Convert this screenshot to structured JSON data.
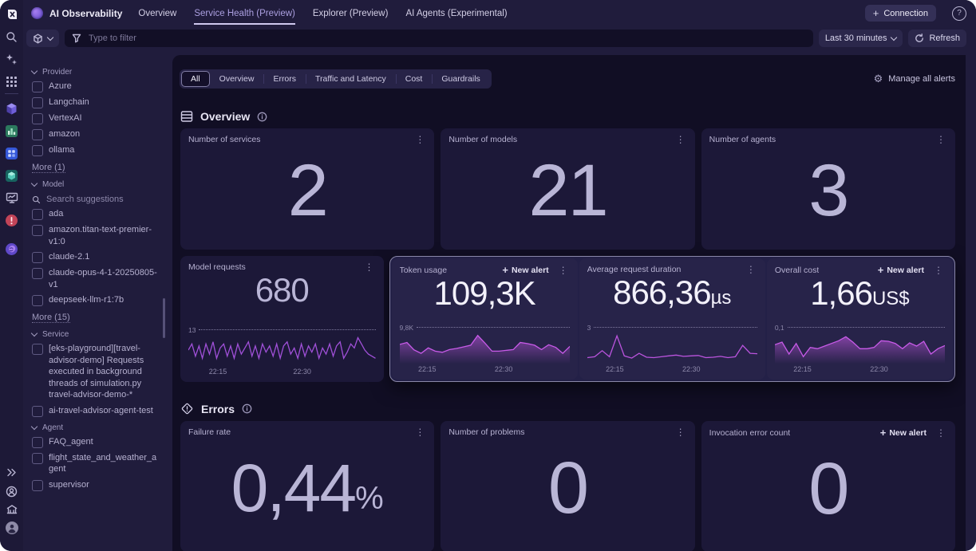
{
  "app": {
    "product": "AI Observability",
    "nav_tabs": [
      {
        "label": "Overview",
        "active": false
      },
      {
        "label": "Service Health (Preview)",
        "active": true
      },
      {
        "label": "Explorer (Preview)",
        "active": false
      },
      {
        "label": "AI Agents (Experimental)",
        "active": false
      }
    ],
    "connection_label": "Connection"
  },
  "filter_bar": {
    "placeholder": "Type to filter",
    "time_range": "Last 30 minutes",
    "refresh_label": "Refresh"
  },
  "sidebar": {
    "sections": [
      {
        "label": "Provider",
        "items": [
          "Azure",
          "Langchain",
          "VertexAI",
          "amazon",
          "ollama"
        ],
        "more": "More (1)"
      },
      {
        "label": "Model",
        "search_placeholder": "Search suggestions",
        "items": [
          "ada",
          "amazon.titan-text-premier-v1:0",
          "claude-2.1",
          "claude-opus-4-1-20250805-v1",
          "deepseek-llm-r1:7b"
        ],
        "more": "More (15)"
      },
      {
        "label": "Service",
        "items": [
          "[eks-playground][travel-advisor-demo] Requests executed in background threads of simulation.py travel-advisor-demo-*",
          "ai-travel-advisor-agent-test"
        ]
      },
      {
        "label": "Agent",
        "items": [
          "FAQ_agent",
          "flight_state_and_weather_agent",
          "supervisor"
        ]
      }
    ]
  },
  "toolbar": {
    "tabs": [
      "All",
      "Overview",
      "Errors",
      "Traffic and Latency",
      "Cost",
      "Guardrails"
    ],
    "active_tab": "All",
    "manage_alerts_label": "Manage all alerts"
  },
  "overview_section": {
    "title": "Overview",
    "count_cards": [
      {
        "title": "Number of services",
        "value": "2"
      },
      {
        "title": "Number of models",
        "value": "21"
      },
      {
        "title": "Number of agents",
        "value": "3"
      }
    ],
    "metric_cards": [
      {
        "title": "Model requests",
        "value": "680",
        "unit": ""
      },
      {
        "title": "Token usage",
        "value": "109,3K",
        "unit": ""
      },
      {
        "title": "Average request duration",
        "value": "866,36",
        "unit": "µs"
      },
      {
        "title": "Overall cost",
        "value": "1,66",
        "unit": "US$"
      }
    ],
    "new_alert_label": "New alert"
  },
  "errors_section": {
    "title": "Errors",
    "cards": [
      {
        "title": "Failure rate",
        "value": "0,44",
        "unit": "%"
      },
      {
        "title": "Number of problems",
        "value": "0",
        "unit": ""
      },
      {
        "title": "Invocation error count",
        "value": "0",
        "unit": ""
      }
    ],
    "new_alert_label": "New alert"
  },
  "colors": {
    "accent": "#ab9fe0",
    "spark_magenta": "#c85ae8",
    "spark_purple": "#a050d8",
    "card_bg": "#1c1838",
    "highlight_border": "#8a87a8"
  },
  "chart_data": [
    {
      "type": "line",
      "title": "Model requests",
      "legend": "none",
      "grid": "off",
      "threshold_label": "13",
      "x_ticks": [
        "22:15",
        "22:30"
      ],
      "ymax": 13.6,
      "color": "#a050d8",
      "area": false,
      "values": [
        7,
        10,
        4,
        9,
        3,
        10,
        5,
        11,
        3,
        8,
        10,
        4,
        9,
        3,
        10,
        5,
        8,
        11,
        4,
        9,
        3,
        10,
        6,
        9,
        4,
        10,
        3,
        9,
        11,
        5,
        8,
        3,
        10,
        4,
        9,
        6,
        10,
        3,
        8,
        5,
        10,
        4,
        9,
        11,
        3,
        6,
        10,
        8,
        13,
        10,
        7,
        5,
        4,
        3
      ]
    },
    {
      "type": "line",
      "title": "Token usage",
      "legend": "none",
      "grid": "off",
      "threshold_label": "9,8K",
      "x_ticks": [
        "22:15",
        "22:30"
      ],
      "ymax": 10.3,
      "color": "#c85ae8",
      "area": true,
      "values": [
        6.5,
        7.2,
        4.5,
        3.2,
        5.2,
        4.0,
        3.6,
        4.6,
        5.0,
        5.6,
        6.2,
        9.8,
        7.0,
        4.0,
        4.0,
        4.3,
        4.6,
        7.2,
        6.8,
        6.2,
        4.6,
        6.4,
        5.4,
        3.2,
        5.8
      ]
    },
    {
      "type": "line",
      "title": "Average request duration",
      "legend": "none",
      "grid": "off",
      "threshold_label": "3",
      "x_ticks": [
        "22:15",
        "22:30"
      ],
      "ymax": 3.2,
      "color": "#bb54de",
      "area": false,
      "values": [
        0.5,
        0.6,
        1.3,
        0.6,
        3.0,
        0.7,
        0.45,
        1.0,
        0.55,
        0.5,
        0.6,
        0.7,
        0.8,
        0.65,
        0.7,
        0.75,
        0.5,
        0.55,
        0.65,
        0.5,
        0.6,
        1.9,
        1.0,
        0.95
      ]
    },
    {
      "type": "line",
      "title": "Overall cost",
      "legend": "none",
      "grid": "off",
      "threshold_label": "0,1",
      "x_ticks": [
        "22:15",
        "22:30"
      ],
      "ymax": 0.105,
      "color": "#c85ae8",
      "area": true,
      "values": [
        0.065,
        0.075,
        0.03,
        0.07,
        0.02,
        0.055,
        0.05,
        0.06,
        0.07,
        0.08,
        0.095,
        0.075,
        0.05,
        0.05,
        0.055,
        0.08,
        0.078,
        0.07,
        0.05,
        0.072,
        0.06,
        0.078,
        0.03,
        0.05,
        0.062
      ]
    }
  ]
}
